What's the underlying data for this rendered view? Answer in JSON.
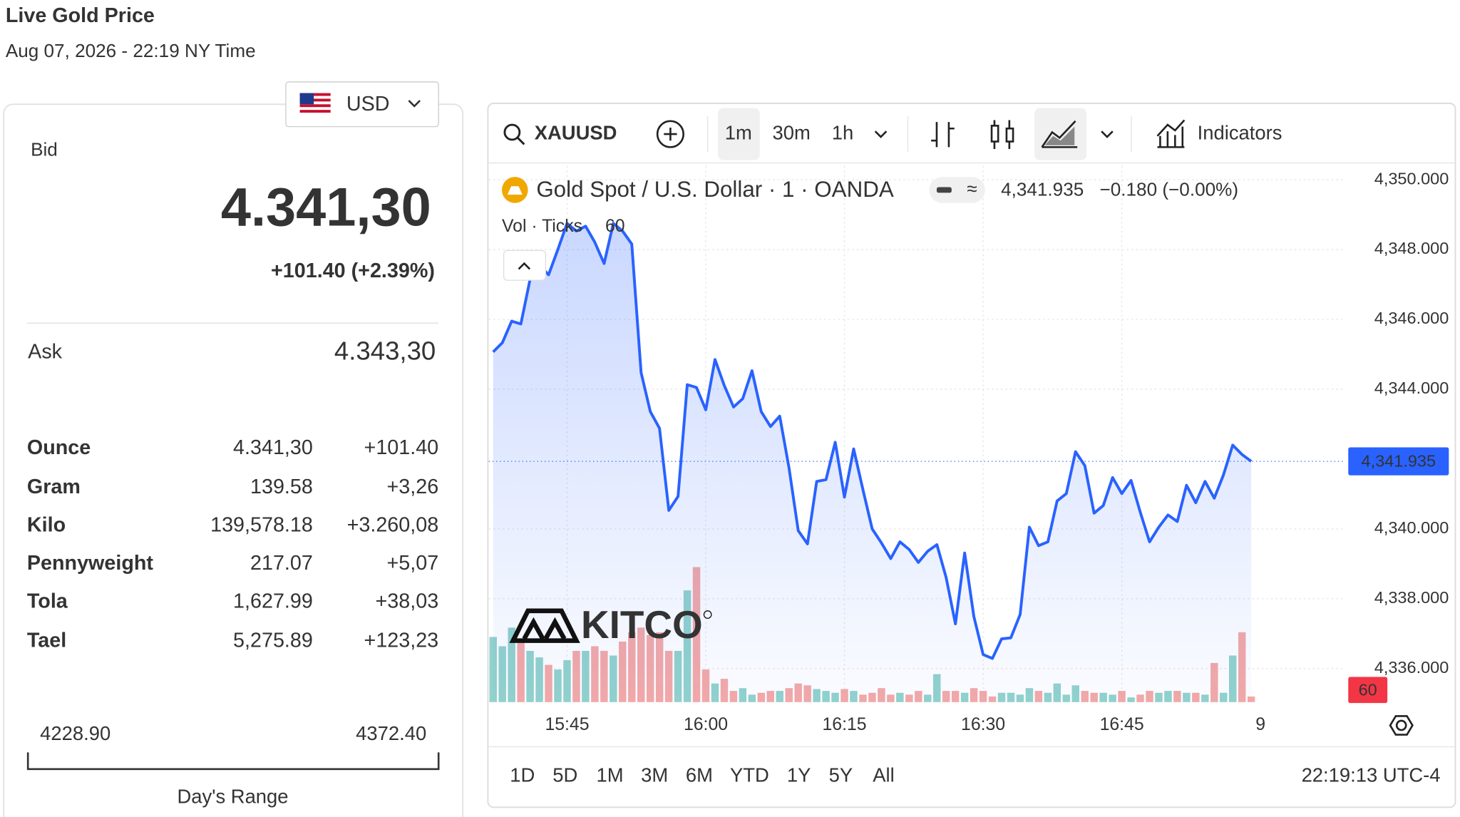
{
  "header": {
    "title": "Live Gold Price",
    "timestamp": "Aug 07, 2026 - 22:19 NY Time"
  },
  "currency": "USD",
  "quote": {
    "bid_label": "Bid",
    "bid": "4.341,30",
    "change": "+101.40 (+2.39%)",
    "ask_label": "Ask",
    "ask": "4.343,30"
  },
  "table": {
    "rows": [
      [
        "Ounce",
        "4.341,30",
        "+101.40"
      ],
      [
        "Gram",
        "139.58",
        "+3,26"
      ],
      [
        "Kilo",
        "139,578.18",
        "+3.260,08"
      ],
      [
        "Pennyweight",
        "217.07",
        "+5,07"
      ],
      [
        "Tola",
        "1,627.99",
        "+38,03"
      ],
      [
        "Tael",
        "5,275.89",
        "+123,23"
      ]
    ]
  },
  "range": {
    "low": "4228.90",
    "high": "4372.40",
    "label": "Day's Range"
  },
  "toolbar": {
    "symbol": "XAUUSD",
    "intervals": [
      "1m",
      "30m",
      "1h"
    ],
    "indicators": "Indicators"
  },
  "range_bar": {
    "buttons": [
      "1D",
      "5D",
      "1M",
      "3M",
      "6M",
      "YTD",
      "1Y",
      "5Y",
      "All"
    ],
    "clock": "22:19:13 UTC-4"
  },
  "watermark": "KITCO",
  "chart_data": {
    "type": "line",
    "title": "Gold Spot / U.S. Dollar · 1 · OANDA",
    "change_label": "−0.180 (−0.00%)",
    "volume_title": "Vol · Ticks",
    "x": [
      "15:37",
      "15:38",
      "15:39",
      "15:40",
      "15:41",
      "15:42",
      "15:43",
      "15:44",
      "15:45",
      "15:46",
      "15:47",
      "15:48",
      "15:49",
      "15:50",
      "15:51",
      "15:52",
      "15:53",
      "15:54",
      "15:55",
      "15:56",
      "15:57",
      "15:58",
      "15:59",
      "16:00",
      "16:01",
      "16:02",
      "16:03",
      "16:04",
      "16:05",
      "16:06",
      "16:07",
      "16:08",
      "16:09",
      "16:10",
      "16:11",
      "16:12",
      "16:13",
      "16:14",
      "16:15",
      "16:16",
      "16:17",
      "16:18",
      "16:19",
      "16:20",
      "16:21",
      "16:22",
      "16:23",
      "16:24",
      "16:25",
      "16:26",
      "16:27",
      "16:28",
      "16:29",
      "16:30",
      "16:31",
      "16:32",
      "16:33",
      "16:34",
      "16:35",
      "16:36",
      "16:37",
      "16:38",
      "16:39",
      "16:40",
      "16:41",
      "16:42",
      "16:43",
      "16:44",
      "16:45",
      "16:46",
      "16:47",
      "16:48",
      "16:49",
      "16:50",
      "16:51",
      "16:52",
      "16:53",
      "16:54",
      "16:55",
      "16:56",
      "16:57",
      "16:58",
      "16:59"
    ],
    "series": [
      {
        "name": "XAUUSD",
        "type": "line",
        "color": "#2962ff",
        "values": [
          4345.07,
          4345.33,
          4345.95,
          4345.87,
          4347.15,
          4347.55,
          4347.28,
          4348.0,
          4348.75,
          4348.53,
          4348.67,
          4348.21,
          4347.6,
          4348.75,
          4348.53,
          4348.16,
          4344.48,
          4343.36,
          4342.88,
          4340.53,
          4340.93,
          4344.13,
          4344.05,
          4343.41,
          4344.85,
          4344.11,
          4343.49,
          4343.73,
          4344.53,
          4343.36,
          4342.93,
          4343.23,
          4341.76,
          4339.95,
          4339.57,
          4341.36,
          4341.41,
          4342.48,
          4340.91,
          4342.29,
          4341.12,
          4340.0,
          4339.6,
          4339.15,
          4339.63,
          4339.41,
          4339.04,
          4339.36,
          4339.55,
          4338.61,
          4337.28,
          4339.31,
          4337.49,
          4336.4,
          4336.29,
          4336.85,
          4336.88,
          4337.55,
          4340.05,
          4339.52,
          4339.63,
          4340.8,
          4341.01,
          4342.21,
          4341.81,
          4340.45,
          4340.67,
          4341.47,
          4341.01,
          4341.39,
          4340.48,
          4339.63,
          4340.05,
          4340.4,
          4340.21,
          4341.25,
          4340.75,
          4341.36,
          4340.88,
          4341.55,
          4342.4,
          4342.13,
          4341.935
        ],
        "value_labels": [
          null,
          null,
          null,
          null,
          null,
          null,
          null,
          null,
          null,
          null,
          null,
          null,
          null,
          null,
          null,
          null,
          null,
          null,
          null,
          null,
          null,
          null,
          null,
          null,
          null,
          null,
          null,
          null,
          null,
          null,
          null,
          null,
          null,
          null,
          null,
          null,
          null,
          null,
          null,
          null,
          null,
          null,
          null,
          null,
          null,
          null,
          null,
          null,
          null,
          null,
          null,
          null,
          null,
          null,
          null,
          null,
          null,
          null,
          null,
          null,
          null,
          null,
          null,
          null,
          null,
          null,
          null,
          null,
          null,
          null,
          null,
          null,
          null,
          null,
          null,
          null,
          null,
          null,
          null,
          null,
          null,
          null,
          "4,341.935"
        ]
      },
      {
        "name": "Vol",
        "type": "bar",
        "up_color": "#92d2cc",
        "down_color": "#f4a9a7",
        "values": [
          700,
          600,
          800,
          650,
          550,
          480,
          400,
          350,
          450,
          550,
          550,
          600,
          550,
          500,
          650,
          750,
          800,
          720,
          750,
          550,
          550,
          1200,
          1450,
          350,
          200,
          250,
          120,
          150,
          80,
          100,
          120,
          120,
          150,
          200,
          180,
          140,
          120,
          100,
          140,
          120,
          80,
          100,
          150,
          80,
          100,
          80,
          120,
          80,
          300,
          120,
          120,
          100,
          150,
          120,
          60,
          100,
          100,
          80,
          150,
          120,
          100,
          200,
          80,
          180,
          120,
          100,
          100,
          80,
          120,
          50,
          80,
          120,
          100,
          120,
          120,
          100,
          100,
          80,
          420,
          100,
          500,
          750,
          60
        ]
      }
    ],
    "ylim": [
      4335.04,
      4350.4
    ],
    "yticks": [
      {
        "value": 4350,
        "label": "4,350.000"
      },
      {
        "value": 4348,
        "label": "4,348.000"
      },
      {
        "value": 4346,
        "label": "4,346.000"
      },
      {
        "value": 4344,
        "label": "4,344.000"
      },
      {
        "value": 4340,
        "label": "4,340.000"
      },
      {
        "value": 4338,
        "label": "4,338.000"
      },
      {
        "value": 4336,
        "label": "4,336.000"
      }
    ],
    "xticks": [
      "15:45",
      "16:00",
      "16:15",
      "16:30",
      "16:45",
      {
        "value": "17:00",
        "label": "9"
      }
    ],
    "grid": true
  }
}
